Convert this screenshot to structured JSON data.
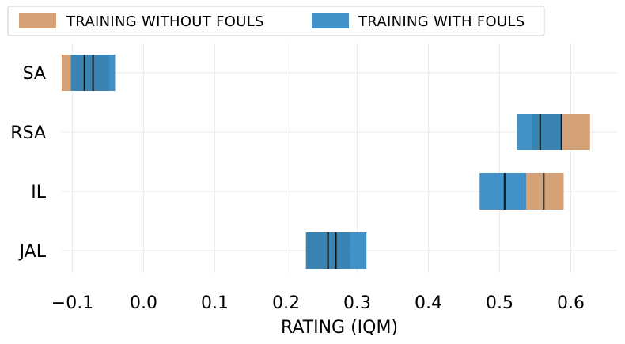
{
  "chart_data": {
    "type": "interval",
    "xlabel": "RATING (IQM)",
    "ylabel": "",
    "xlim": [
      -0.115,
      0.665
    ],
    "xticks": [
      -0.1,
      0.0,
      0.1,
      0.2,
      0.3,
      0.4,
      0.5,
      0.6
    ],
    "xtick_labels": [
      "−0.1",
      "0.0",
      "0.1",
      "0.2",
      "0.3",
      "0.4",
      "0.5",
      "0.6"
    ],
    "categories": [
      "SA",
      "RSA",
      "IL",
      "JAL"
    ],
    "grid": true,
    "legend_position": "top-left",
    "series": [
      {
        "name": "TRAINING WITHOUT FOULS",
        "color": "#d4a276",
        "intervals": [
          {
            "low": -0.115,
            "high": -0.048,
            "iqm": -0.071
          },
          {
            "low": 0.545,
            "high": 0.627,
            "iqm": 0.587
          },
          {
            "low": 0.535,
            "high": 0.59,
            "iqm": 0.562
          },
          {
            "low": 0.228,
            "high": 0.29,
            "iqm": 0.27
          }
        ]
      },
      {
        "name": "TRAINING WITH FOULS",
        "color": "#1f7fc0",
        "intervals": [
          {
            "low": -0.102,
            "high": -0.04,
            "iqm": -0.083
          },
          {
            "low": 0.524,
            "high": 0.587,
            "iqm": 0.557
          },
          {
            "low": 0.472,
            "high": 0.537,
            "iqm": 0.507
          },
          {
            "low": 0.228,
            "high": 0.313,
            "iqm": 0.259
          }
        ]
      }
    ]
  }
}
